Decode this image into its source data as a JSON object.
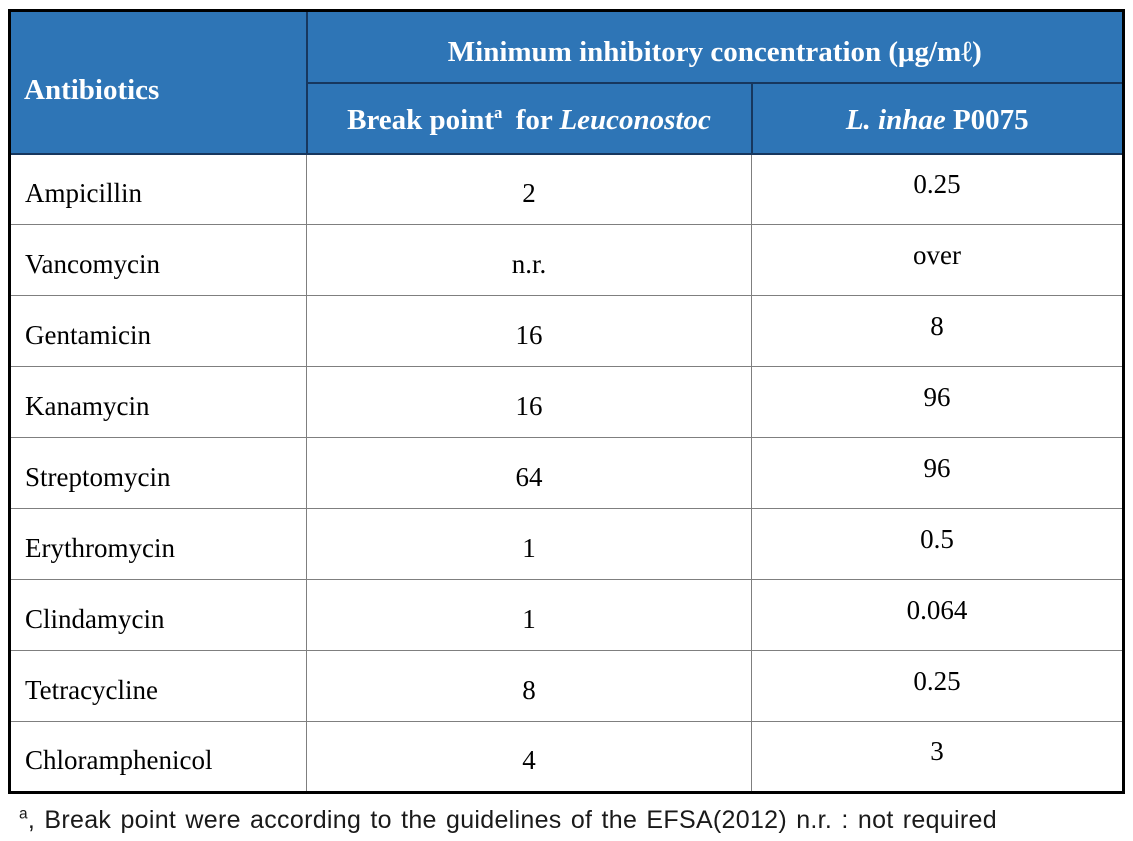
{
  "table": {
    "header": {
      "antibiotics": "Antibiotics",
      "mic_title": "Minimum inhibitory concentration (μg/mℓ)",
      "breakpoint_col": {
        "prefix": "Break point",
        "sup": "a",
        "middle": " for ",
        "italic": "Leuconostoc"
      },
      "strain_col": {
        "italic": "L. inhae",
        "suffix": " P0075"
      }
    },
    "rows": [
      {
        "antibiotic": "Ampicillin",
        "breakpoint": "2",
        "mic": "0.25"
      },
      {
        "antibiotic": "Vancomycin",
        "breakpoint": "n.r.",
        "mic": "over"
      },
      {
        "antibiotic": "Gentamicin",
        "breakpoint": "16",
        "mic": "8"
      },
      {
        "antibiotic": "Kanamycin",
        "breakpoint": "16",
        "mic": "96"
      },
      {
        "antibiotic": "Streptomycin",
        "breakpoint": "64",
        "mic": "96"
      },
      {
        "antibiotic": "Erythromycin",
        "breakpoint": "1",
        "mic": "0.5"
      },
      {
        "antibiotic": "Clindamycin",
        "breakpoint": "1",
        "mic": "0.064"
      },
      {
        "antibiotic": "Tetracycline",
        "breakpoint": "8",
        "mic": "0.25"
      },
      {
        "antibiotic": "Chloramphenicol",
        "breakpoint": "4",
        "mic": "3"
      }
    ]
  },
  "footnote": {
    "sup": "a",
    "text": ", Break point were according to the guidelines of the EFSA(2012) n.r. : not required"
  },
  "colors": {
    "header_bg": "#2E75B6",
    "header_text": "#FFFFFF",
    "header_border": "#17375E",
    "grid_line": "#7F7F7F",
    "outer_border": "#000000",
    "body_text": "#000000",
    "footnote_text": "#1A1A1A"
  },
  "chart_data": {
    "type": "table",
    "title": "Minimum inhibitory concentration (μg/mℓ)",
    "columns": [
      "Antibiotics",
      "Break point (a) for Leuconostoc",
      "L. inhae P0075"
    ],
    "rows": [
      [
        "Ampicillin",
        "2",
        "0.25"
      ],
      [
        "Vancomycin",
        "n.r.",
        "over"
      ],
      [
        "Gentamicin",
        "16",
        "8"
      ],
      [
        "Kanamycin",
        "16",
        "96"
      ],
      [
        "Streptomycin",
        "64",
        "96"
      ],
      [
        "Erythromycin",
        "1",
        "0.5"
      ],
      [
        "Clindamycin",
        "1",
        "0.064"
      ],
      [
        "Tetracycline",
        "8",
        "0.25"
      ],
      [
        "Chloramphenicol",
        "4",
        "3"
      ]
    ],
    "footnote": "a, Break point were according to the guidelines of the EFSA(2012) n.r. : not required"
  }
}
